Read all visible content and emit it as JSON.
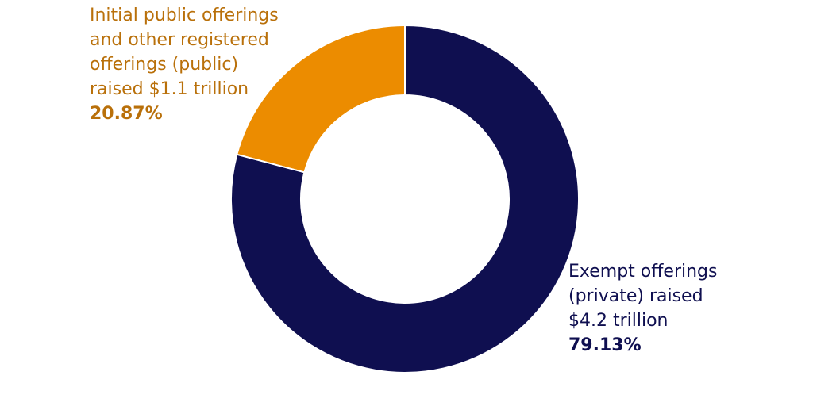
{
  "chart_data": {
    "type": "pie",
    "donut": true,
    "series": [
      {
        "name": "Initial public offerings and other registered offerings (public)",
        "value": 20.87,
        "color": "#ec8c00",
        "label_lines": [
          "Initial public offerings",
          "and other registered",
          "offerings (public)",
          "raised $1.1 trillion"
        ],
        "pct_label": "20.87%",
        "text_color": "#b9700a"
      },
      {
        "name": "Exempt offerings (private)",
        "value": 79.13,
        "color": "#0f0f50",
        "label_lines": [
          "Exempt offerings",
          "(private) raised",
          "$4.2 trillion"
        ],
        "pct_label": "79.13%",
        "text_color": "#0f0f50"
      }
    ]
  }
}
